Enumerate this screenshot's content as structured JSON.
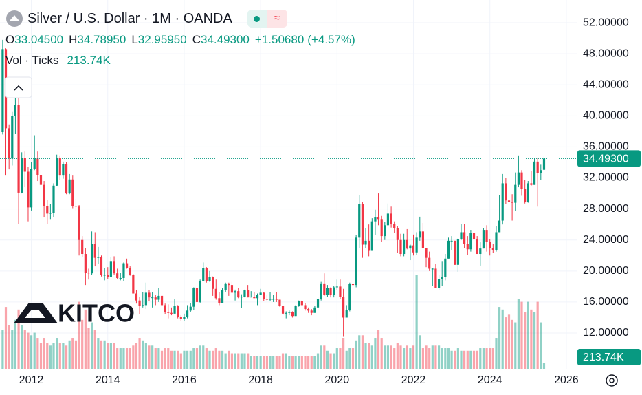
{
  "chart_data": {
    "type": "candlestick",
    "title": "Silver / U.S. Dollar · 1M · OANDA",
    "legend_items": [
      {
        "key": "O",
        "value": "33.04500"
      },
      {
        "key": "H",
        "value": "34.78950"
      },
      {
        "key": "L",
        "value": "32.95950"
      },
      {
        "key": "C",
        "value": "34.49300"
      }
    ],
    "change": "+1.50680",
    "change_pct": "(+4.57%)",
    "volume_title": "Vol · Ticks",
    "volume_label": "213.74K",
    "last_price_label": "34.49300",
    "watermark": "KITCO",
    "up_color": "#089981",
    "down_color": "#f23645",
    "grid": true,
    "xlim": [
      2011.18,
      2026.29
    ],
    "xticks": [
      2012,
      2014,
      2016,
      2018,
      2020,
      2022,
      2024,
      2026
    ],
    "ylim": [
      7.39,
      54.93
    ],
    "yticks": [
      {
        "value": 12,
        "label": "12.00000"
      },
      {
        "value": 16,
        "label": "16.00000"
      },
      {
        "value": 20,
        "label": "20.00000"
      },
      {
        "value": 24,
        "label": "24.00000"
      },
      {
        "value": 28,
        "label": "28.00000"
      },
      {
        "value": 32,
        "label": "32.00000"
      },
      {
        "value": 36,
        "label": "36.00000"
      },
      {
        "value": 40,
        "label": "40.00000"
      },
      {
        "value": 44,
        "label": "44.00000"
      },
      {
        "value": 48,
        "label": "48.00000"
      },
      {
        "value": 52,
        "label": "52.00000"
      }
    ],
    "x": [
      2011.25,
      2011.333,
      2011.417,
      2011.5,
      2011.583,
      2011.667,
      2011.75,
      2011.833,
      2011.917,
      2012,
      2012.083,
      2012.167,
      2012.25,
      2012.333,
      2012.417,
      2012.5,
      2012.583,
      2012.667,
      2012.75,
      2012.833,
      2012.917,
      2013,
      2013.083,
      2013.167,
      2013.25,
      2013.333,
      2013.417,
      2013.5,
      2013.583,
      2013.667,
      2013.75,
      2013.833,
      2013.917,
      2014,
      2014.083,
      2014.167,
      2014.25,
      2014.333,
      2014.417,
      2014.5,
      2014.583,
      2014.667,
      2014.75,
      2014.833,
      2014.917,
      2015,
      2015.083,
      2015.167,
      2015.25,
      2015.333,
      2015.417,
      2015.5,
      2015.583,
      2015.667,
      2015.75,
      2015.833,
      2015.917,
      2016,
      2016.083,
      2016.167,
      2016.25,
      2016.333,
      2016.417,
      2016.5,
      2016.583,
      2016.667,
      2016.75,
      2016.833,
      2016.917,
      2017,
      2017.083,
      2017.167,
      2017.25,
      2017.333,
      2017.417,
      2017.5,
      2017.583,
      2017.667,
      2017.75,
      2017.833,
      2017.917,
      2018,
      2018.083,
      2018.167,
      2018.25,
      2018.333,
      2018.417,
      2018.5,
      2018.583,
      2018.667,
      2018.75,
      2018.833,
      2018.917,
      2019,
      2019.083,
      2019.167,
      2019.25,
      2019.333,
      2019.417,
      2019.5,
      2019.583,
      2019.667,
      2019.75,
      2019.833,
      2019.917,
      2020,
      2020.083,
      2020.167,
      2020.25,
      2020.333,
      2020.417,
      2020.5,
      2020.583,
      2020.667,
      2020.75,
      2020.833,
      2020.917,
      2021,
      2021.083,
      2021.167,
      2021.25,
      2021.333,
      2021.417,
      2021.5,
      2021.583,
      2021.667,
      2021.75,
      2021.833,
      2021.917,
      2022,
      2022.083,
      2022.167,
      2022.25,
      2022.333,
      2022.417,
      2022.5,
      2022.583,
      2022.667,
      2022.75,
      2022.833,
      2022.917,
      2023,
      2023.083,
      2023.167,
      2023.25,
      2023.333,
      2023.417,
      2023.5,
      2023.583,
      2023.667,
      2023.75,
      2023.833,
      2023.917,
      2024,
      2024.083,
      2024.167,
      2024.25,
      2024.333,
      2024.417,
      2024.5,
      2024.583,
      2024.667,
      2024.75,
      2024.833,
      2024.917,
      2025,
      2025.083,
      2025.167,
      2025.25,
      2025.333,
      2025.417
    ],
    "open": [
      37.9,
      48.6,
      38.4,
      34.5,
      40.0,
      41.4,
      30.1,
      34.6,
      32.8,
      28.2,
      33.2,
      34.5,
      32.4,
      31.1,
      28.4,
      27.4,
      27.5,
      31.0,
      34.6,
      32.3,
      33.8,
      30.0,
      31.8,
      28.4,
      28.3,
      24.0,
      22.2,
      19.8,
      19.7,
      23.5,
      21.7,
      21.8,
      19.5,
      19.5,
      19.2,
      21.2,
      19.7,
      19.1,
      19.1,
      21.0,
      20.4,
      19.5,
      17.1,
      16.2,
      15.5,
      15.6,
      17.2,
      16.6,
      16.6,
      16.3,
      16.8,
      15.6,
      14.7,
      14.6,
      14.5,
      15.5,
      14.1,
      13.8,
      14.1,
      14.9,
      15.4,
      17.8,
      16.0,
      18.7,
      20.4,
      18.7,
      19.2,
      17.7,
      16.5,
      15.9,
      17.5,
      18.4,
      18.2,
      17.2,
      17.4,
      16.6,
      16.7,
      17.5,
      16.6,
      16.7,
      16.5,
      16.9,
      17.2,
      16.4,
      16.3,
      16.4,
      16.4,
      16.3,
      15.5,
      14.5,
      14.6,
      14.7,
      14.2,
      15.5,
      16.1,
      15.6,
      15.1,
      14.9,
      14.6,
      15.3,
      16.4,
      18.4,
      16.9,
      17.8,
      16.9,
      17.9,
      18.0,
      16.7,
      14.0,
      15.0,
      18.3,
      18.2,
      24.3,
      28.6,
      23.4,
      23.9,
      22.6,
      26.4,
      26.9,
      26.7,
      24.5,
      25.9,
      27.4,
      26.1,
      25.5,
      24.0,
      22.2,
      24.0,
      22.9,
      23.3,
      22.4,
      24.3,
      25.1,
      23.0,
      21.7,
      20.3,
      20.3,
      17.8,
      19.0,
      19.2,
      21.6,
      23.9,
      23.9,
      20.8,
      24.1,
      25.0,
      23.5,
      22.8,
      24.9,
      24.1,
      22.2,
      22.9,
      25.3,
      23.8,
      23.0,
      22.7,
      25.0,
      26.5,
      31.3,
      29.1,
      28.9,
      28.8,
      31.1,
      32.7,
      30.6,
      28.9,
      31.3,
      31.1,
      34.1,
      32.6,
      33.045
    ],
    "high": [
      49.8,
      48.7,
      38.9,
      40.5,
      44.3,
      43.4,
      35.3,
      35.4,
      33.4,
      34.0,
      37.5,
      35.4,
      33.0,
      31.6,
      29.2,
      28.6,
      31.3,
      35.0,
      34.9,
      34.1,
      34.0,
      32.5,
      32.3,
      29.3,
      28.5,
      24.5,
      23.0,
      20.3,
      25.1,
      25.0,
      23.1,
      22.0,
      20.4,
      20.5,
      21.8,
      21.9,
      20.3,
      19.8,
      21.1,
      21.6,
      20.6,
      19.6,
      17.5,
      16.7,
      17.3,
      18.5,
      17.5,
      17.3,
      16.9,
      17.8,
      16.9,
      15.8,
      15.7,
      15.3,
      16.4,
      15.6,
      14.3,
      14.5,
      15.6,
      15.9,
      17.9,
      17.9,
      18.9,
      21.1,
      20.5,
      20.0,
      19.3,
      18.9,
      17.3,
      17.8,
      18.5,
      18.5,
      18.6,
      17.6,
      17.8,
      17.0,
      17.6,
      18.2,
      17.4,
      17.3,
      17.1,
      17.7,
      17.3,
      16.9,
      17.3,
      16.9,
      17.3,
      16.3,
      15.5,
      14.8,
      14.9,
      14.8,
      15.6,
      16.2,
      16.2,
      15.9,
      15.3,
      15.1,
      15.5,
      16.7,
      18.6,
      19.7,
      18.2,
      17.9,
      18.1,
      18.9,
      18.9,
      17.7,
      15.6,
      18.5,
      18.8,
      24.6,
      29.8,
      28.9,
      25.5,
      26.0,
      26.8,
      27.9,
      30.0,
      27.1,
      26.3,
      28.7,
      28.3,
      26.4,
      25.8,
      24.8,
      24.8,
      25.4,
      23.4,
      24.7,
      25.0,
      27.0,
      26.2,
      23.0,
      22.5,
      20.4,
      20.9,
      19.5,
      21.2,
      22.2,
      24.3,
      24.5,
      23.9,
      24.2,
      26.1,
      26.1,
      24.5,
      25.3,
      25.0,
      24.5,
      23.7,
      25.5,
      25.9,
      24.1,
      23.5,
      25.8,
      29.8,
      32.5,
      32.0,
      31.8,
      29.9,
      32.7,
      34.9,
      33.0,
      31.7,
      31.6,
      32.9,
      34.6,
      34.6,
      33.7,
      34.7895
    ],
    "low": [
      37.6,
      32.3,
      33.1,
      33.6,
      37.7,
      26.1,
      30.0,
      30.8,
      26.4,
      27.8,
      33.0,
      31.6,
      30.6,
      26.9,
      26.1,
      26.7,
      26.9,
      30.9,
      31.7,
      31.9,
      29.9,
      29.9,
      28.1,
      27.8,
      22.0,
      21.8,
      18.2,
      18.9,
      19.5,
      20.6,
      20.9,
      19.3,
      18.8,
      19.0,
      19.2,
      19.5,
      19.0,
      18.8,
      18.7,
      20.3,
      19.4,
      17.1,
      15.8,
      14.4,
      15.3,
      15.1,
      16.1,
      15.3,
      15.6,
      16.0,
      15.5,
      14.4,
      13.9,
      14.3,
      14.5,
      13.9,
      13.6,
      13.6,
      13.9,
      14.7,
      15.0,
      15.8,
      15.9,
      18.7,
      18.5,
      18.6,
      16.8,
      16.3,
      15.6,
      15.9,
      17.3,
      16.8,
      17.2,
      16.2,
      16.5,
      15.2,
      16.6,
      16.6,
      16.6,
      16.5,
      15.6,
      16.9,
      16.1,
      16.1,
      16.1,
      16.0,
      16.0,
      15.4,
      14.3,
      13.9,
      14.3,
      14.0,
      14.2,
      15.4,
      15.6,
      14.9,
      14.6,
      14.3,
      14.6,
      15.0,
      16.2,
      16.8,
      16.7,
      16.6,
      16.6,
      17.5,
      16.4,
      11.6,
      14.0,
      14.8,
      17.1,
      17.9,
      23.0,
      21.7,
      23.0,
      21.9,
      22.6,
      24.6,
      25.9,
      23.8,
      24.0,
      25.8,
      25.6,
      24.9,
      22.3,
      21.9,
      21.9,
      22.8,
      21.4,
      22.0,
      22.1,
      23.9,
      22.9,
      20.5,
      20.0,
      18.1,
      17.8,
      17.6,
      18.1,
      18.8,
      21.6,
      22.7,
      20.8,
      19.9,
      24.0,
      23.0,
      22.1,
      22.5,
      22.2,
      22.2,
      20.7,
      22.9,
      22.5,
      22.0,
      22.3,
      22.5,
      25.0,
      26.0,
      28.6,
      27.6,
      26.5,
      27.7,
      30.8,
      29.7,
      28.7,
      28.8,
      31.0,
      31.1,
      28.3,
      31.7,
      32.9595
    ],
    "close": [
      48.6,
      38.4,
      34.5,
      40.0,
      41.4,
      30.1,
      34.6,
      32.8,
      28.2,
      33.2,
      34.5,
      32.4,
      31.1,
      28.4,
      27.4,
      27.5,
      31.0,
      34.6,
      32.3,
      33.8,
      30.0,
      31.8,
      28.4,
      28.3,
      24.0,
      22.2,
      19.8,
      19.7,
      23.5,
      21.7,
      21.8,
      19.5,
      19.5,
      19.2,
      21.2,
      19.7,
      19.1,
      19.1,
      21.0,
      20.4,
      19.5,
      17.1,
      16.2,
      15.5,
      15.6,
      17.2,
      16.6,
      16.6,
      16.3,
      16.8,
      15.6,
      14.7,
      14.6,
      14.5,
      15.5,
      14.1,
      13.8,
      14.1,
      14.9,
      15.4,
      17.8,
      16.0,
      18.7,
      20.4,
      18.7,
      19.2,
      17.7,
      16.5,
      15.9,
      17.5,
      18.4,
      18.2,
      17.2,
      17.4,
      16.6,
      16.7,
      17.5,
      16.6,
      16.7,
      16.5,
      16.9,
      17.2,
      16.4,
      16.3,
      16.4,
      16.4,
      16.3,
      15.5,
      14.5,
      14.6,
      14.7,
      14.2,
      15.5,
      16.1,
      15.6,
      15.1,
      14.9,
      14.6,
      15.3,
      16.4,
      18.4,
      16.9,
      17.8,
      16.9,
      17.9,
      18.0,
      16.7,
      14.0,
      15.0,
      18.3,
      18.2,
      24.3,
      28.6,
      23.4,
      23.9,
      22.6,
      26.4,
      26.9,
      26.7,
      24.5,
      25.9,
      27.4,
      26.1,
      25.5,
      24.0,
      22.2,
      24.0,
      22.9,
      23.3,
      22.4,
      24.3,
      25.1,
      23.0,
      21.7,
      20.3,
      20.3,
      17.8,
      19.0,
      19.2,
      21.6,
      23.9,
      23.9,
      20.8,
      24.1,
      25.0,
      23.5,
      22.8,
      24.9,
      24.1,
      22.2,
      22.9,
      25.3,
      23.8,
      23.0,
      22.7,
      25.0,
      26.5,
      31.3,
      29.1,
      28.9,
      28.8,
      31.1,
      32.7,
      30.6,
      28.9,
      31.3,
      31.1,
      34.1,
      32.6,
      33.0,
      34.493
    ],
    "volume": [
      1500,
      2400,
      1700,
      1500,
      1900,
      2300,
      1700,
      1500,
      1400,
      1300,
      1400,
      1200,
      1000,
      1200,
      1000,
      900,
      1000,
      1200,
      1000,
      1000,
      900,
      1100,
      1200,
      1100,
      2600,
      1900,
      2300,
      1600,
      1800,
      1500,
      1200,
      1100,
      1100,
      1000,
      1000,
      1000,
      800,
      800,
      800,
      800,
      800,
      900,
      1000,
      1200,
      1100,
      1000,
      900,
      900,
      800,
      800,
      700,
      800,
      800,
      700,
      700,
      700,
      600,
      700,
      700,
      700,
      800,
      800,
      900,
      900,
      800,
      700,
      700,
      800,
      700,
      700,
      600,
      700,
      600,
      600,
      600,
      600,
      600,
      600,
      500,
      500,
      500,
      500,
      500,
      500,
      500,
      500,
      500,
      500,
      600,
      600,
      500,
      500,
      500,
      500,
      500,
      500,
      500,
      500,
      500,
      600,
      900,
      900,
      700,
      600,
      600,
      800,
      800,
      1200,
      700,
      800,
      800,
      1100,
      1300,
      1300,
      1000,
      1000,
      900,
      1200,
      1500,
      1200,
      900,
      900,
      900,
      800,
      1000,
      900,
      800,
      900,
      800,
      900,
      3630,
      1300,
      800,
      900,
      800,
      900,
      900,
      900,
      800,
      800,
      800,
      700,
      700,
      800,
      700,
      700,
      700,
      700,
      700,
      700,
      800,
      800,
      800,
      800,
      800,
      1200,
      2400,
      2300,
      2000,
      2100,
      1900,
      1800,
      2700,
      2600,
      2200,
      2600,
      2300,
      2200,
      2600,
      1800,
      213.74
    ]
  }
}
